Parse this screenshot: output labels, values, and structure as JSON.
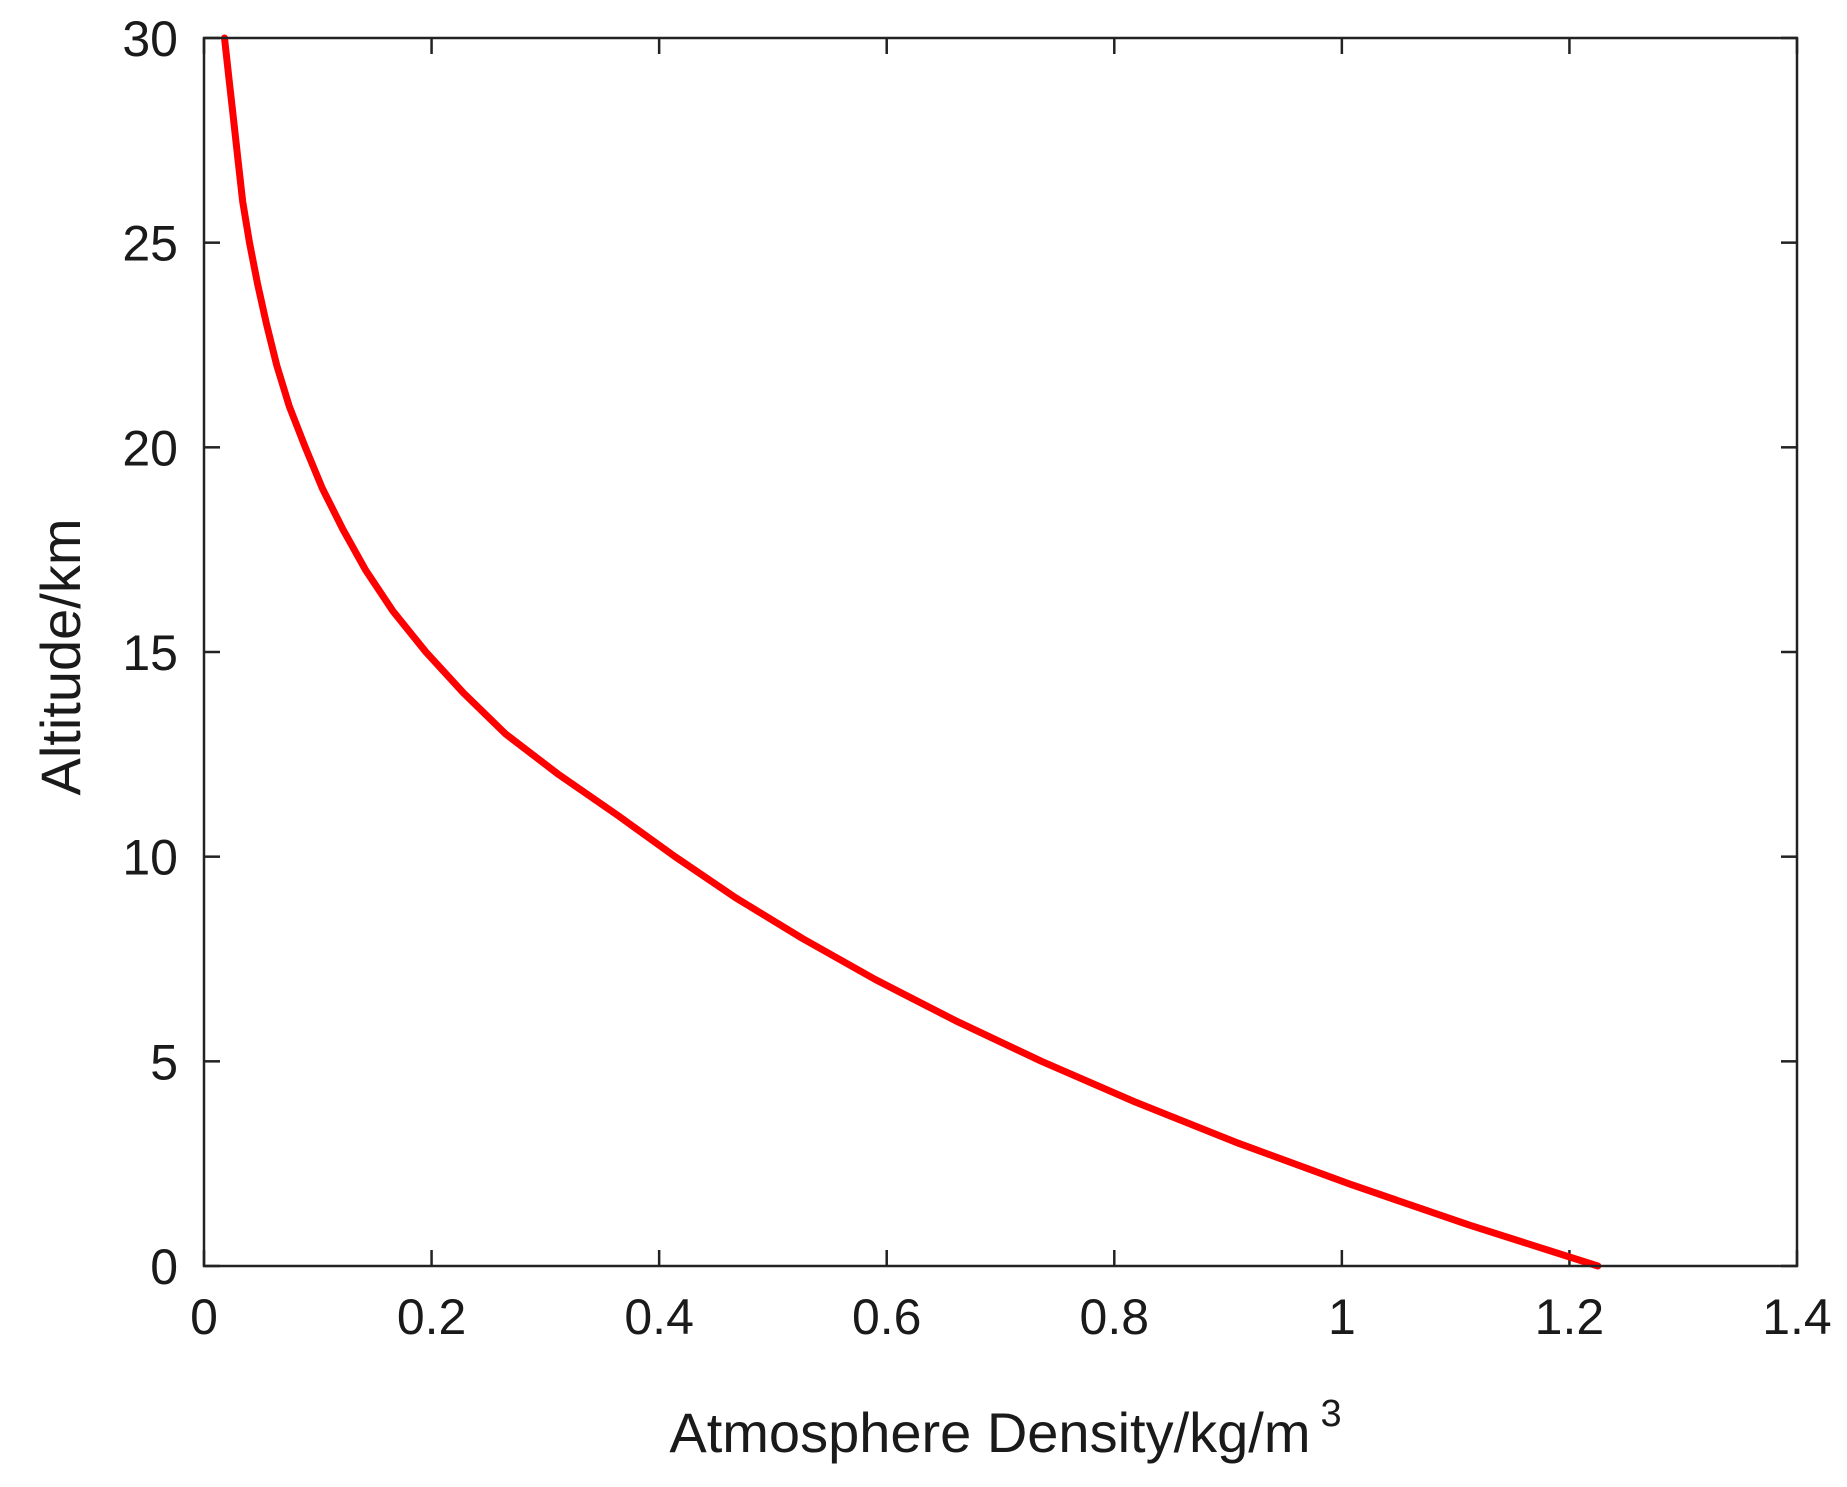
{
  "chart_data": {
    "type": "line",
    "title": "",
    "xlabel": "Atmosphere Density/kg/m",
    "xlabel_superscript": "3",
    "ylabel": "Altitude/km",
    "xlim": [
      0,
      1.4
    ],
    "ylim": [
      0,
      30
    ],
    "xticks": [
      "0",
      "0.2",
      "0.4",
      "0.6",
      "0.8",
      "1",
      "1.2",
      "1.4"
    ],
    "yticks": [
      "0",
      "5",
      "10",
      "15",
      "20",
      "25",
      "30"
    ],
    "grid": false,
    "line_color": "#ff0000",
    "series": [
      {
        "x": [
          1.225,
          1.112,
          1.007,
          0.909,
          0.819,
          0.736,
          0.66,
          0.59,
          0.526,
          0.467,
          0.414,
          0.364,
          0.312,
          0.265,
          0.228,
          0.195,
          0.166,
          0.142,
          0.122,
          0.104,
          0.089,
          0.075,
          0.064,
          0.055,
          0.047,
          0.04,
          0.034,
          0.03,
          0.026,
          0.022,
          0.018
        ],
        "y": [
          0,
          1,
          2,
          3,
          4,
          5,
          6,
          7,
          8,
          9,
          10,
          11,
          12,
          13,
          14,
          15,
          16,
          17,
          18,
          19,
          20,
          21,
          22,
          23,
          24,
          25,
          26,
          27,
          28,
          29,
          30
        ]
      }
    ]
  }
}
